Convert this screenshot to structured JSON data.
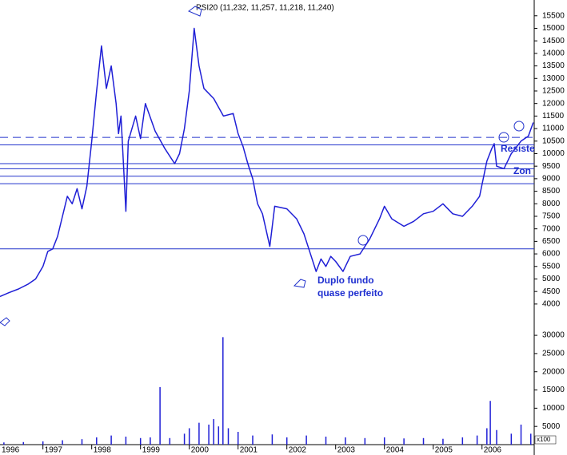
{
  "chart_data": [
    {
      "type": "line",
      "title": "PSI20 (11,232, 11,257, 11,218, 11,240)",
      "xlim": [
        1996.12,
        2007.07
      ],
      "ylim": [
        3550,
        16130
      ],
      "yticks": [
        4000,
        4500,
        5000,
        5500,
        6000,
        6500,
        7000,
        7500,
        8000,
        8500,
        9000,
        9500,
        10000,
        10500,
        11000,
        11500,
        12000,
        12500,
        13000,
        13500,
        14000,
        14500,
        15000,
        15500
      ],
      "series": [
        {
          "color": "#1f1fd6",
          "x": [
            1996.12,
            1996.3,
            1996.5,
            1996.7,
            1996.85,
            1997.0,
            1997.1,
            1997.2,
            1997.3,
            1997.4,
            1997.5,
            1997.6,
            1997.7,
            1997.8,
            1997.9,
            1998.0,
            1998.1,
            1998.2,
            1998.3,
            1998.4,
            1998.5,
            1998.55,
            1998.6,
            1998.7,
            1998.75,
            1998.9,
            1999.0,
            1999.1,
            1999.3,
            1999.5,
            1999.7,
            1999.8,
            1999.9,
            2000.0,
            2000.1,
            2000.2,
            2000.3,
            2000.5,
            2000.7,
            2000.9,
            2001.0,
            2001.1,
            2001.2,
            2001.3,
            2001.4,
            2001.5,
            2001.65,
            2001.75,
            2002.0,
            2002.2,
            2002.35,
            2002.5,
            2002.6,
            2002.7,
            2002.8,
            2002.9,
            2003.0,
            2003.15,
            2003.3,
            2003.5,
            2003.7,
            2003.9,
            2004.0,
            2004.15,
            2004.4,
            2004.6,
            2004.8,
            2005.0,
            2005.2,
            2005.4,
            2005.6,
            2005.8,
            2005.95,
            2006.1,
            2006.2,
            2006.25,
            2006.3,
            2006.45,
            2006.6,
            2006.8,
            2006.95,
            2007.05
          ],
          "values": [
            4300,
            4450,
            4600,
            4800,
            5000,
            5500,
            6100,
            6200,
            6700,
            7500,
            8300,
            8000,
            8600,
            7800,
            8700,
            10500,
            12500,
            14300,
            12600,
            13500,
            12000,
            10800,
            11500,
            7700,
            10500,
            11500,
            10600,
            12000,
            10900,
            10200,
            9600,
            10000,
            11000,
            12500,
            15000,
            13500,
            12600,
            12200,
            11500,
            11600,
            10800,
            10300,
            9600,
            9000,
            8000,
            7600,
            6300,
            7900,
            7800,
            7400,
            6800,
            5900,
            5300,
            5800,
            5500,
            5900,
            5700,
            5300,
            5900,
            6000,
            6600,
            7400,
            7900,
            7400,
            7100,
            7300,
            7600,
            7700,
            8000,
            7600,
            7500,
            7900,
            8300,
            9700,
            10200,
            10400,
            9500,
            9400,
            10000,
            10500,
            10700,
            11240
          ]
        }
      ],
      "hlines": [
        {
          "value": 10650,
          "dashed": true
        },
        {
          "value": 10350,
          "dashed": false
        },
        {
          "value": 9600,
          "dashed": false
        },
        {
          "value": 9400,
          "dashed": false
        },
        {
          "value": 9100,
          "dashed": false
        },
        {
          "value": 8800,
          "dashed": false
        },
        {
          "value": 6200,
          "dashed": false
        }
      ],
      "line_color": "#2233cc",
      "annotations": [
        "Duplo fundo",
        "quase perfeito",
        "Resiste",
        "Zon"
      ]
    },
    {
      "type": "bar",
      "unit_label": "x100",
      "color": "#1f1fd6",
      "xlim": [
        1996.12,
        2007.07
      ],
      "ylim": [
        0,
        34400
      ],
      "yticks": [
        5000,
        10000,
        15000,
        20000,
        25000,
        30000
      ],
      "xticks": [
        1996,
        1997,
        1998,
        1999,
        2000,
        2001,
        2002,
        2003,
        2004,
        2005,
        2006
      ],
      "x": [
        1996.2,
        1996.6,
        1997.0,
        1997.4,
        1997.8,
        1998.1,
        1998.4,
        1998.7,
        1999.0,
        1999.2,
        1999.4,
        1999.6,
        1999.9,
        2000.0,
        2000.2,
        2000.4,
        2000.5,
        2000.6,
        2000.69,
        2000.8,
        2001.0,
        2001.3,
        2001.7,
        2002.0,
        2002.4,
        2002.8,
        2003.2,
        2003.6,
        2004.0,
        2004.4,
        2004.8,
        2005.2,
        2005.6,
        2005.9,
        2006.1,
        2006.17,
        2006.3,
        2006.6,
        2006.8,
        2007.0
      ],
      "values": [
        600,
        700,
        900,
        1200,
        1500,
        2000,
        2500,
        2200,
        1800,
        2000,
        15800,
        1800,
        3000,
        4500,
        6000,
        5500,
        7000,
        5000,
        29500,
        4500,
        3500,
        2500,
        2800,
        2000,
        2500,
        2200,
        2000,
        1800,
        2000,
        1700,
        1800,
        1600,
        2000,
        2500,
        4500,
        12000,
        4000,
        3000,
        5500,
        3000
      ]
    }
  ]
}
